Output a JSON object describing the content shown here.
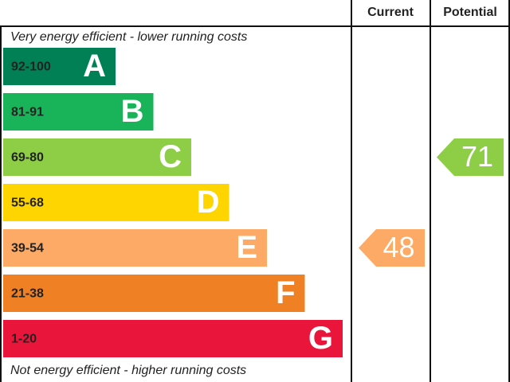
{
  "chart_data": {
    "type": "epc",
    "column_headers": {
      "current": "Current",
      "potential": "Potential"
    },
    "top_note": "Very energy efficient - lower running costs",
    "bottom_note": "Not energy efficient - higher running costs",
    "bands": [
      {
        "range": "92-100",
        "letter": "A",
        "color": "#008054"
      },
      {
        "range": "81-91",
        "letter": "B",
        "color": "#19b459"
      },
      {
        "range": "69-80",
        "letter": "C",
        "color": "#8dce46"
      },
      {
        "range": "55-68",
        "letter": "D",
        "color": "#ffd500"
      },
      {
        "range": "39-54",
        "letter": "E",
        "color": "#fcaa65"
      },
      {
        "range": "21-38",
        "letter": "F",
        "color": "#ef8023"
      },
      {
        "range": "1-20",
        "letter": "G",
        "color": "#e9153b"
      }
    ],
    "current": {
      "value": 48,
      "color": "#fcaa65"
    },
    "potential": {
      "value": 71,
      "color": "#8dce46"
    }
  }
}
